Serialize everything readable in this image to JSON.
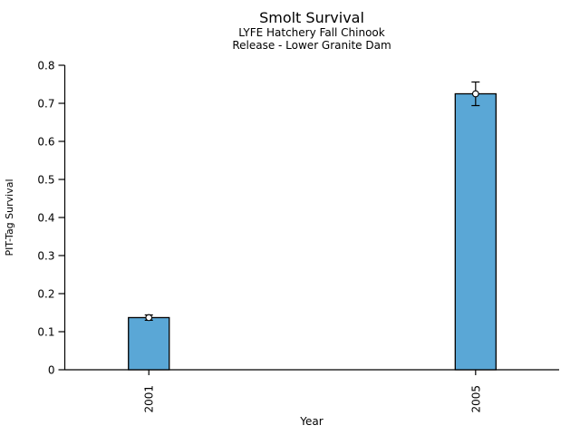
{
  "chart_data": {
    "type": "bar",
    "title": "Smolt Survival",
    "subtitle_lines": [
      "LYFE Hatchery Fall Chinook",
      "Release - Lower Granite Dam"
    ],
    "xlabel": "Year",
    "ylabel": "PIT-Tag Survival",
    "categories": [
      "2001",
      "2005"
    ],
    "values": [
      0.137,
      0.725
    ],
    "errors": [
      0.007,
      0.031
    ],
    "ylim": [
      0,
      0.8
    ],
    "yticks": [
      0,
      0.1,
      0.2,
      0.3,
      0.4,
      0.5,
      0.6,
      0.7,
      0.8
    ],
    "ytick_labels": [
      "0",
      "0.1",
      "0.2",
      "0.3",
      "0.4",
      "0.5",
      "0.6",
      "0.7",
      "0.8"
    ],
    "grid": false,
    "legend": "none",
    "background_color": "#ffffff",
    "bar_color": "#5AA7D6",
    "bar_edge_color": "#000000",
    "error_color": "#000000",
    "error_marker": "open-circle"
  }
}
